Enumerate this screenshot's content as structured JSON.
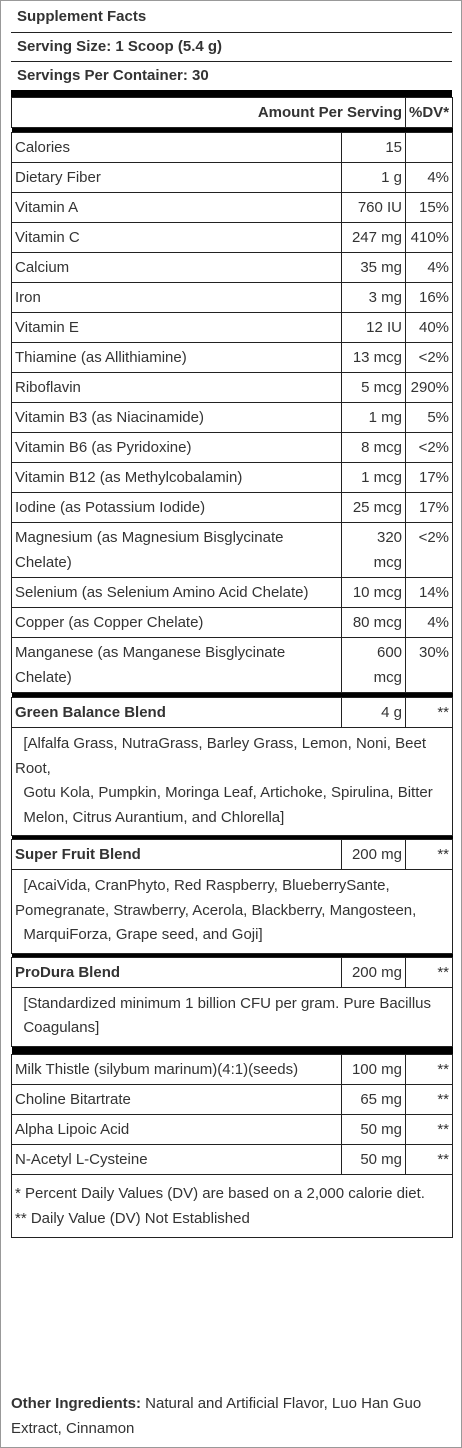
{
  "facts": {
    "title": "Supplement Facts",
    "serving_size": "Serving Size: 1 Scoop (5.4 g)",
    "servings_per_container": "Servings Per Container: 30",
    "amount_header": "Amount Per Serving",
    "dv_header": "%DV*"
  },
  "nutrients": [
    {
      "name": "Calories",
      "amount": "15",
      "dv": ""
    },
    {
      "name": "Dietary Fiber",
      "amount": "1 g",
      "dv": "4%"
    },
    {
      "name": "Vitamin A",
      "amount": "760 IU",
      "dv": "15%"
    },
    {
      "name": "Vitamin C",
      "amount": "247 mg",
      "dv": "410%"
    },
    {
      "name": "Calcium",
      "amount": "35 mg",
      "dv": "4%"
    },
    {
      "name": "Iron",
      "amount": "3 mg",
      "dv": "16%"
    },
    {
      "name": "Vitamin E",
      "amount": "12 IU",
      "dv": "40%"
    },
    {
      "name": "Thiamine (as Allithiamine)",
      "amount": "13 mcg",
      "dv": "<2%"
    },
    {
      "name": "Riboflavin",
      "amount": "5 mcg",
      "dv": "290%"
    },
    {
      "name": "Vitamin B3 (as Niacinamide)",
      "amount": "1 mg",
      "dv": "5%"
    },
    {
      "name": "Vitamin B6 (as Pyridoxine)",
      "amount": "8 mcg",
      "dv": "<2%"
    },
    {
      "name": "Vitamin B12 (as Methylcobalamin)",
      "amount": "1 mcg",
      "dv": "17%"
    },
    {
      "name": "Iodine (as Potassium Iodide)",
      "amount": "25 mcg",
      "dv": "17%"
    },
    {
      "name": "Magnesium (as Magnesium Bisglycinate Chelate)",
      "amount": "320 mcg",
      "dv": "<2%"
    },
    {
      "name": "Selenium (as Selenium Amino Acid Chelate)",
      "amount": "10 mcg",
      "dv": "14%"
    },
    {
      "name": "Copper (as Copper Chelate)",
      "amount": "80 mcg",
      "dv": "4%"
    },
    {
      "name": "Manganese (as Manganese Bisglycinate Chelate)",
      "amount": "600 mcg",
      "dv": "30%"
    }
  ],
  "blends": [
    {
      "name": "Green Balance Blend",
      "amount": "4 g",
      "dv": "**",
      "ingredients": [
        "  [Alfalfa Grass, NutraGrass, Barley Grass, Lemon, Noni, Beet Root,",
        "  Gotu Kola, Pumpkin, Moringa Leaf, Artichoke, Spirulina, Bitter",
        "  Melon, Citrus Aurantium, and Chlorella]"
      ]
    },
    {
      "name": "Super Fruit Blend",
      "amount": "200 mg",
      "dv": "**",
      "ingredients": [
        "  [AcaiVida, CranPhyto, Red Raspberry, BlueberrySante, Pomegranate, Strawberry, Acerola, Blackberry, Mangosteen,",
        "  MarquiForza, Grape seed, and Goji]"
      ]
    },
    {
      "name": "ProDura Blend",
      "amount": "200 mg",
      "dv": "**",
      "ingredients": [
        "  [Standardized minimum 1 billion CFU per gram. Pure Bacillus",
        "  Coagulans]"
      ]
    }
  ],
  "others": [
    {
      "name": "Milk Thistle (silybum marinum)(4:1)(seeds)",
      "amount": "100 mg",
      "dv": "**"
    },
    {
      "name": "Choline Bitartrate",
      "amount": "65 mg",
      "dv": "**"
    },
    {
      "name": "Alpha Lipoic Acid",
      "amount": "50 mg",
      "dv": "**"
    },
    {
      "name": "N-Acetyl L-Cysteine",
      "amount": "50 mg",
      "dv": "**"
    }
  ],
  "footnotes": {
    "dv_note": "* Percent Daily Values (DV) are based on a 2,000 calorie diet.",
    "not_established": "** Daily Value (DV) Not Established"
  },
  "other_ingredients": {
    "label": "Other Ingredients:",
    "text": " Natural and Artificial Flavor, Luo Han Guo Extract, Cinnamon"
  }
}
